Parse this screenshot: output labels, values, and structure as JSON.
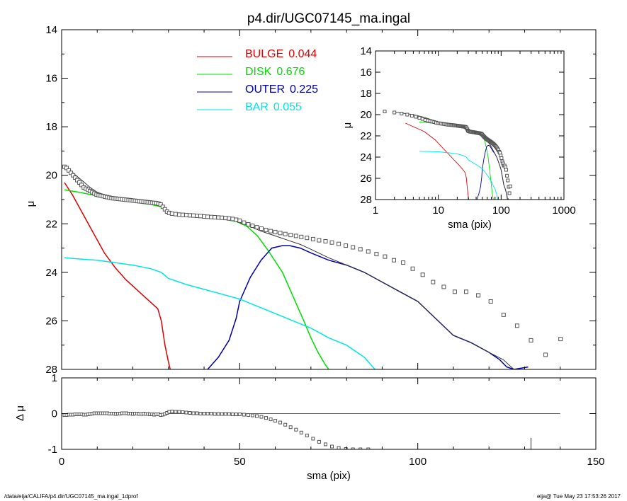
{
  "title": "p4.dir/UGC07145_ma.ingal",
  "footer": {
    "path": "/data/eija/CALIFA/p4.dir/UGC07145_ma.ingal_1dprof",
    "user_time": "eija@  Tue May 23 17:53:26 2017"
  },
  "colors": {
    "bulge": "#dd0000",
    "disk": "#00dd00",
    "outer": "#0000aa",
    "bar": "#00e5e5",
    "total": "#333333",
    "obs": "#555555"
  },
  "legend": [
    {
      "name": "BULGE",
      "value": "0.044",
      "color": "#dd0000"
    },
    {
      "name": "DISK",
      "value": "0.676",
      "color": "#00dd00"
    },
    {
      "name": "OUTER",
      "value": "0.225",
      "color": "#0000aa"
    },
    {
      "name": "BAR",
      "value": "0.055",
      "color": "#00e5e5"
    }
  ],
  "chart_data": [
    {
      "id": "main",
      "type": "line",
      "xlabel": "sma (pix)",
      "ylabel": "μ",
      "xlim": [
        0,
        150
      ],
      "ylim": [
        14,
        28
      ],
      "y_inverted": true,
      "xticks": [
        "0",
        "50",
        "100",
        "150"
      ],
      "yticks": [
        "14",
        "16",
        "18",
        "20",
        "22",
        "24",
        "26",
        "28"
      ],
      "series": [
        {
          "name": "BULGE",
          "x": [
            0.8,
            3,
            6,
            9,
            12,
            15,
            18,
            21,
            24,
            27,
            28,
            29,
            30,
            30.5
          ],
          "y": [
            20.3,
            20.8,
            21.6,
            22.4,
            23.2,
            23.8,
            24.3,
            24.7,
            25.1,
            25.5,
            26,
            27.0,
            27.7,
            28.0
          ]
        },
        {
          "name": "DISK",
          "x": [
            0.8,
            5,
            10,
            15,
            20,
            25,
            28,
            30,
            35,
            40,
            45,
            49,
            52,
            55,
            58,
            62,
            65,
            68,
            70,
            72,
            74,
            75
          ],
          "y": [
            20.6,
            20.7,
            20.85,
            21.0,
            21.1,
            21.2,
            21.3,
            21.55,
            21.7,
            21.75,
            21.8,
            21.9,
            22.1,
            22.5,
            23.1,
            24.0,
            25.0,
            26.0,
            26.7,
            27.3,
            27.8,
            28.0
          ]
        },
        {
          "name": "OUTER",
          "x": [
            41,
            44,
            47,
            49,
            50,
            53,
            56,
            59,
            62,
            64,
            67,
            70,
            75,
            80,
            85,
            90,
            95,
            100,
            105,
            110,
            115,
            120,
            123,
            125,
            127,
            131
          ],
          "y": [
            28.0,
            27.5,
            26.8,
            25.9,
            25.2,
            24.2,
            23.5,
            23.0,
            22.9,
            22.9,
            23.0,
            23.2,
            23.5,
            23.7,
            24.0,
            24.4,
            24.8,
            25.2,
            25.9,
            26.6,
            26.9,
            27.3,
            27.6,
            27.9,
            28.0,
            27.9
          ]
        },
        {
          "name": "BAR",
          "x": [
            0.8,
            5,
            10,
            15,
            20,
            25,
            28,
            30,
            35,
            40,
            45,
            50,
            55,
            60,
            65,
            70,
            75,
            80,
            85,
            88
          ],
          "y": [
            23.4,
            23.45,
            23.5,
            23.6,
            23.7,
            23.85,
            24.0,
            24.25,
            24.5,
            24.7,
            24.9,
            25.1,
            25.4,
            25.7,
            26.0,
            26.3,
            26.7,
            27.0,
            27.5,
            28.0
          ]
        },
        {
          "name": "Total",
          "x": [
            0.8,
            2,
            4,
            6,
            8,
            10,
            13,
            16,
            20,
            24,
            28,
            29,
            30,
            32,
            36,
            40,
            44,
            48,
            52,
            56,
            60,
            64,
            67,
            70,
            75,
            80,
            85,
            90,
            95,
            100,
            105,
            110,
            115,
            120,
            124,
            127
          ],
          "y": [
            19.6,
            19.75,
            20.0,
            20.25,
            20.5,
            20.7,
            20.85,
            20.95,
            21.0,
            21.05,
            21.15,
            21.35,
            21.5,
            21.6,
            21.65,
            21.75,
            21.8,
            21.85,
            22.05,
            22.3,
            22.5,
            22.7,
            22.85,
            23.05,
            23.4,
            23.7,
            24.0,
            24.4,
            24.8,
            25.2,
            25.9,
            26.6,
            26.9,
            27.3,
            27.6,
            28.0
          ]
        }
      ],
      "observed": {
        "name": "data",
        "x": [
          0.8,
          1.4,
          2.0,
          2.6,
          3.2,
          3.8,
          4.4,
          5.0,
          5.6,
          6.2,
          6.8,
          7.4,
          8.0,
          8.6,
          9.2,
          9.8,
          10.4,
          11.0,
          11.6,
          12.2,
          12.8,
          13.4,
          14.0,
          14.6,
          15.2,
          15.8,
          16.4,
          17.0,
          17.6,
          18.2,
          18.8,
          19.4,
          20.0,
          20.6,
          21.2,
          21.8,
          22.4,
          23.0,
          23.6,
          24.2,
          24.8,
          25.4,
          26.0,
          26.6,
          27.2,
          27.8,
          28.4,
          29.0,
          29.6,
          30.2,
          31,
          32,
          33,
          34,
          35,
          36,
          37,
          38,
          39,
          40,
          41,
          42,
          43,
          44,
          45,
          46,
          47,
          48,
          49,
          50,
          51.2,
          52.4,
          53.6,
          54.8,
          56.1,
          57.4,
          58.7,
          60.0,
          61.4,
          62.8,
          64.3,
          65.8,
          67.3,
          68.9,
          70.6,
          72.3,
          74.1,
          75.9,
          77.8,
          79.8,
          81.8,
          83.9,
          86.1,
          88.4,
          90.8,
          93.3,
          95.9,
          98.6,
          101.4,
          104.3,
          107.3,
          110.4,
          113.6,
          117.0,
          120.5,
          124.1,
          127.9,
          131.8,
          135.9,
          140.1
        ],
        "y": [
          19.65,
          19.7,
          19.8,
          19.9,
          20.0,
          20.1,
          20.2,
          20.3,
          20.4,
          20.5,
          20.55,
          20.6,
          20.65,
          20.7,
          20.75,
          20.8,
          20.82,
          20.84,
          20.86,
          20.88,
          20.9,
          20.92,
          20.94,
          20.95,
          20.96,
          20.97,
          20.98,
          20.99,
          21.0,
          21.01,
          21.02,
          21.03,
          21.04,
          21.05,
          21.06,
          21.07,
          21.08,
          21.09,
          21.1,
          21.11,
          21.12,
          21.13,
          21.14,
          21.15,
          21.17,
          21.2,
          21.3,
          21.4,
          21.5,
          21.55,
          21.58,
          21.6,
          21.62,
          21.63,
          21.64,
          21.65,
          21.66,
          21.67,
          21.68,
          21.7,
          21.71,
          21.72,
          21.73,
          21.74,
          21.75,
          21.76,
          21.78,
          21.8,
          21.83,
          21.87,
          21.95,
          22.02,
          22.08,
          22.14,
          22.2,
          22.25,
          22.3,
          22.34,
          22.38,
          22.42,
          22.46,
          22.5,
          22.54,
          22.58,
          22.63,
          22.68,
          22.72,
          22.77,
          22.83,
          22.9,
          22.97,
          23.05,
          23.14,
          23.25,
          23.35,
          23.5,
          23.6,
          23.85,
          24.1,
          24.4,
          24.6,
          24.8,
          24.8,
          24.95,
          25.2,
          25.75,
          26.2,
          26.8,
          27.4,
          26.75
        ]
      }
    },
    {
      "id": "residual",
      "type": "scatter",
      "xlabel": "sma (pix)",
      "ylabel": "Δ μ",
      "xlim": [
        0,
        150
      ],
      "ylim": [
        -1,
        1
      ],
      "xticks": [
        "0",
        "50",
        "100",
        "150"
      ],
      "yticks": [
        "1",
        "0",
        "-1"
      ],
      "zero_line_x": [
        1,
        140
      ],
      "marker_x": 131.8,
      "residual": {
        "x": [
          0.8,
          1.4,
          2.0,
          2.6,
          3.2,
          3.8,
          4.4,
          5.0,
          5.6,
          6.2,
          6.8,
          7.4,
          8.0,
          8.6,
          9.2,
          9.8,
          10.4,
          11.0,
          11.6,
          12.2,
          12.8,
          13.4,
          14.0,
          14.6,
          15.2,
          15.8,
          16.4,
          17.0,
          17.6,
          18.2,
          18.8,
          19.4,
          20.0,
          20.6,
          21.2,
          21.8,
          22.4,
          23.0,
          23.6,
          24.2,
          24.8,
          25.4,
          26.0,
          26.6,
          27.2,
          27.8,
          28.4,
          29.0,
          29.6,
          30.2,
          31,
          32,
          33,
          34,
          35,
          36,
          37,
          38,
          39,
          40,
          41,
          42,
          43,
          44,
          45,
          46,
          47,
          48,
          49,
          50,
          51.2,
          52.4,
          53.6,
          54.8,
          56.1,
          57.4,
          58.7,
          60.0,
          61.4,
          62.8,
          64.3,
          65.8,
          67.3,
          68.9,
          70.6,
          72.3,
          74.1,
          75.9,
          77.8,
          79.8,
          81.8,
          83.9,
          86.1
        ],
        "y": [
          -0.04,
          -0.04,
          -0.03,
          -0.03,
          -0.03,
          -0.02,
          -0.02,
          -0.02,
          -0.02,
          -0.03,
          -0.03,
          -0.02,
          -0.01,
          0.0,
          0.01,
          0.01,
          0.01,
          0.01,
          0.01,
          0.01,
          0.01,
          0.0,
          0.0,
          0.0,
          -0.01,
          0.0,
          0.0,
          0.01,
          0.01,
          0.01,
          0.0,
          0.0,
          -0.01,
          0.0,
          0.0,
          -0.01,
          -0.01,
          0.0,
          -0.01,
          -0.01,
          -0.02,
          -0.02,
          -0.03,
          -0.02,
          -0.02,
          -0.04,
          -0.03,
          -0.01,
          0.02,
          0.05,
          0.06,
          0.05,
          0.05,
          0.04,
          0.03,
          0.02,
          0.01,
          0.01,
          0.0,
          0.0,
          0.0,
          0.0,
          -0.01,
          -0.01,
          -0.01,
          -0.01,
          -0.01,
          -0.02,
          -0.02,
          -0.02,
          -0.03,
          -0.04,
          -0.05,
          -0.07,
          -0.09,
          -0.12,
          -0.16,
          -0.2,
          -0.25,
          -0.31,
          -0.38,
          -0.45,
          -0.53,
          -0.61,
          -0.7,
          -0.79,
          -0.86,
          -0.92,
          -0.96,
          -0.99,
          -1.0,
          -1.0,
          -1.0
        ]
      }
    },
    {
      "id": "inset",
      "type": "line",
      "xlabel": "sma (pix)",
      "ylabel": "μ",
      "xscale": "log",
      "xlim": [
        1,
        1000
      ],
      "ylim": [
        14,
        28
      ],
      "y_inverted": true,
      "xticks": [
        "1",
        "10",
        "100",
        "1000"
      ],
      "yticks": [
        "14",
        "16",
        "18",
        "20",
        "22",
        "24",
        "26",
        "28"
      ]
    }
  ]
}
